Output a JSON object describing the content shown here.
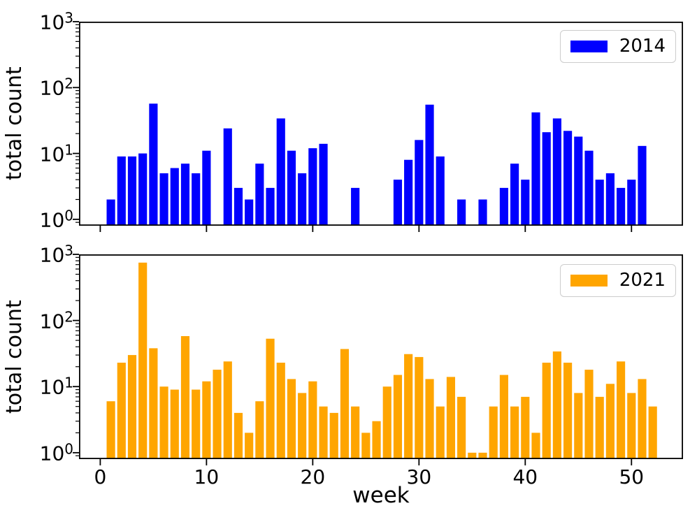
{
  "figure": {
    "background": "#ffffff",
    "text_color": "#000000",
    "spine_color": "#000000"
  },
  "chart_data": [
    {
      "type": "bar",
      "panel": "top",
      "legend_label": "2014",
      "legend_position": "upper right",
      "bar_color": "#0000ff",
      "ylabel": "total count",
      "yscale": "log",
      "ylim": [
        0.8,
        1000
      ],
      "xlim": [
        -2,
        54.85
      ],
      "y_tick_exponents": [
        0,
        1,
        2,
        3
      ],
      "x_ticks": [
        0,
        10,
        20,
        30,
        40,
        50
      ],
      "x_tick_labels_visible": false,
      "grid": false,
      "zero_means_no_bar": true,
      "weeks": [
        1,
        2,
        3,
        4,
        5,
        6,
        7,
        8,
        9,
        10,
        11,
        12,
        13,
        14,
        15,
        16,
        17,
        18,
        19,
        20,
        21,
        22,
        23,
        24,
        25,
        26,
        27,
        28,
        29,
        30,
        31,
        32,
        33,
        34,
        35,
        36,
        37,
        38,
        39,
        40,
        41,
        42,
        43,
        44,
        45,
        46,
        47,
        48,
        49,
        50,
        51,
        52
      ],
      "values": [
        2,
        9,
        9,
        10,
        57,
        5,
        6,
        7,
        5,
        11,
        0,
        24,
        3,
        2,
        7,
        3,
        34,
        11,
        5,
        12,
        14,
        0,
        0,
        3,
        0,
        0,
        0,
        4,
        8,
        16,
        55,
        9,
        0,
        2,
        0,
        2,
        0,
        3,
        7,
        4,
        42,
        21,
        34,
        22,
        18,
        11,
        4,
        5,
        3,
        4,
        13,
        0
      ]
    },
    {
      "type": "bar",
      "panel": "bottom",
      "legend_label": "2021",
      "legend_position": "upper right",
      "bar_color": "#ffa500",
      "ylabel": "total count",
      "xlabel": "week",
      "yscale": "log",
      "ylim": [
        0.8,
        1000
      ],
      "xlim": [
        -2,
        54.85
      ],
      "y_tick_exponents": [
        0,
        1,
        2,
        3
      ],
      "x_ticks": [
        0,
        10,
        20,
        30,
        40,
        50
      ],
      "x_tick_labels_visible": true,
      "grid": false,
      "zero_means_no_bar": true,
      "weeks": [
        1,
        2,
        3,
        4,
        5,
        6,
        7,
        8,
        9,
        10,
        11,
        12,
        13,
        14,
        15,
        16,
        17,
        18,
        19,
        20,
        21,
        22,
        23,
        24,
        25,
        26,
        27,
        28,
        29,
        30,
        31,
        32,
        33,
        34,
        35,
        36,
        37,
        38,
        39,
        40,
        41,
        42,
        43,
        44,
        45,
        46,
        47,
        48,
        49,
        50,
        51,
        52
      ],
      "values": [
        6,
        23,
        30,
        750,
        38,
        10,
        9,
        58,
        9,
        12,
        18,
        24,
        4,
        2,
        6,
        53,
        23,
        13,
        8,
        12,
        5,
        4,
        37,
        5,
        2,
        3,
        10,
        15,
        31,
        28,
        13,
        5,
        14,
        7,
        1,
        1,
        5,
        15,
        5,
        7,
        2,
        23,
        34,
        23,
        8,
        18,
        7,
        11,
        24,
        8,
        13,
        5
      ]
    }
  ]
}
